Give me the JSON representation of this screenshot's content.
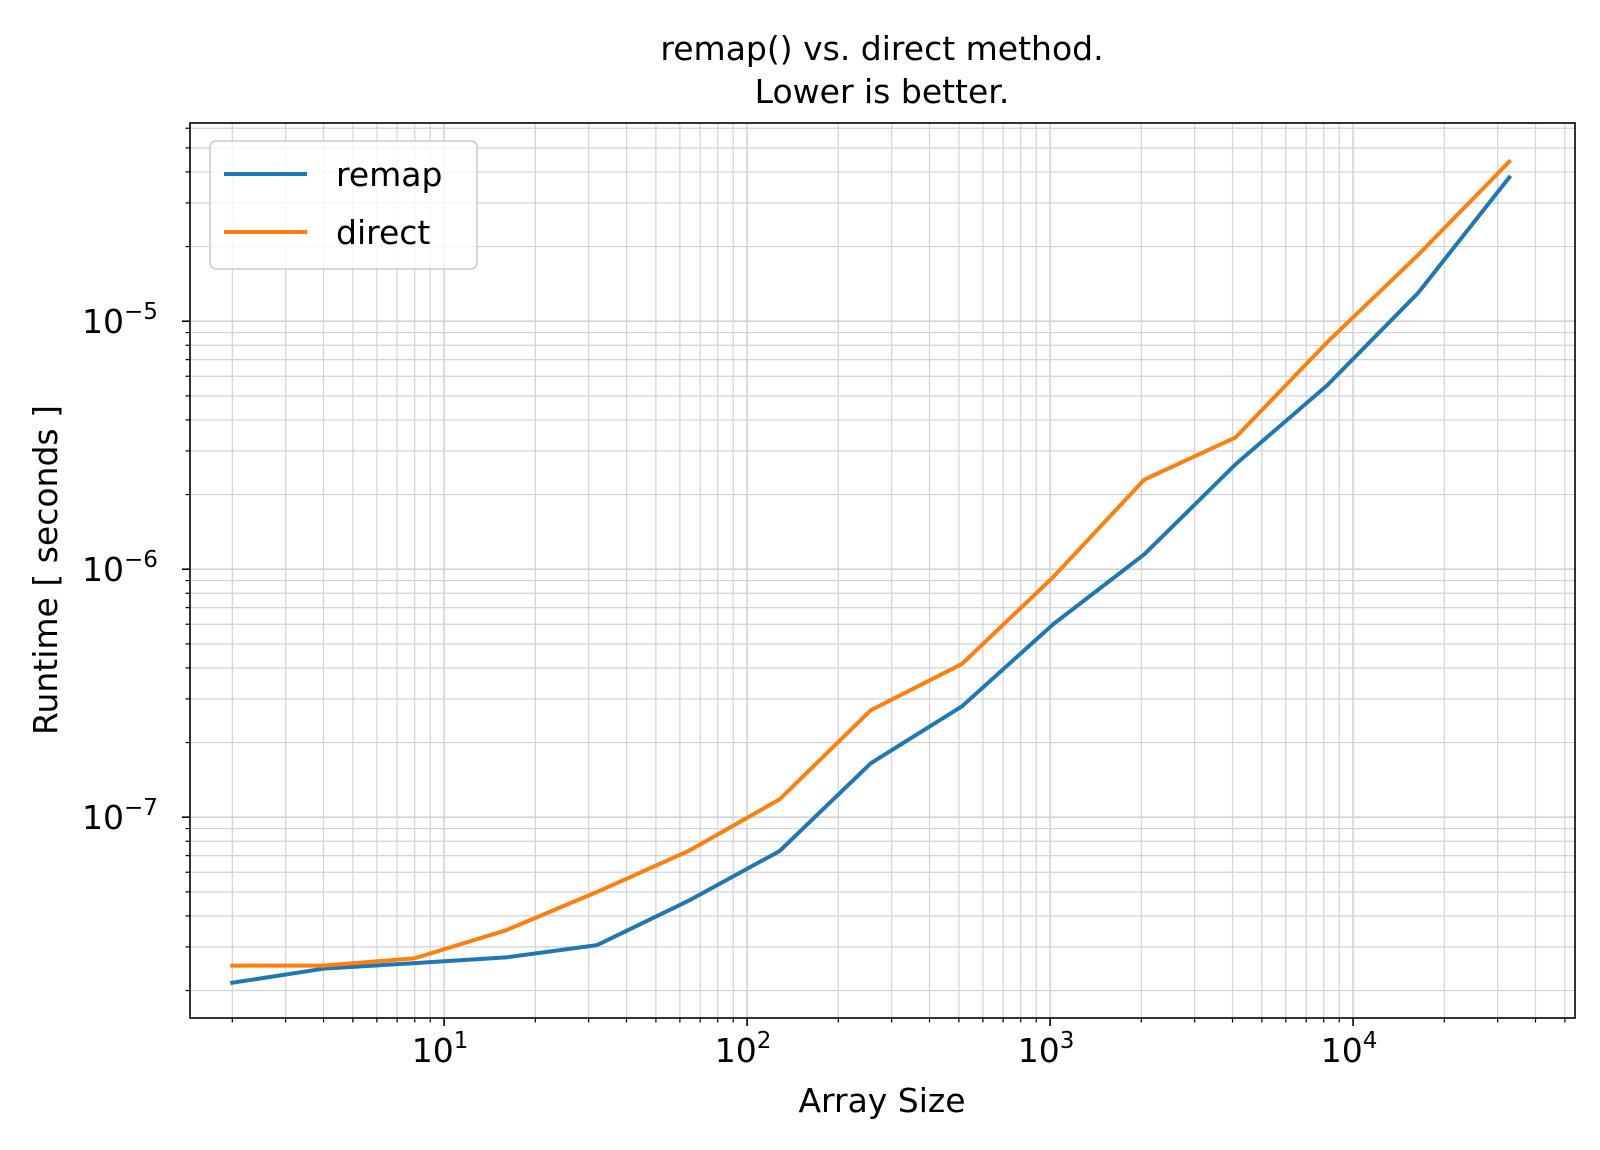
{
  "chart_data": {
    "type": "line",
    "title": [
      "remap() vs. direct method.",
      "Lower is better."
    ],
    "xlabel": "Array Size",
    "ylabel": "Runtime [ seconds ]",
    "xscale": "log",
    "yscale": "log",
    "xlim": [
      1.45,
      54000
    ],
    "ylim": [
      1.55e-08,
      6.3e-05
    ],
    "grid": "both",
    "legend_position": "top-left",
    "x_ticks": [
      {
        "value": 10,
        "base": "10",
        "exp": "1"
      },
      {
        "value": 100,
        "base": "10",
        "exp": "2"
      },
      {
        "value": 1000,
        "base": "10",
        "exp": "3"
      },
      {
        "value": 10000,
        "base": "10",
        "exp": "4"
      }
    ],
    "y_ticks": [
      {
        "value": 1e-07,
        "base": "10",
        "exp": "−7"
      },
      {
        "value": 1e-06,
        "base": "10",
        "exp": "−6"
      },
      {
        "value": 1e-05,
        "base": "10",
        "exp": "−5"
      }
    ],
    "x": [
      2,
      4,
      8,
      16,
      32,
      64,
      128,
      256,
      512,
      1024,
      2048,
      4096,
      8192,
      16384,
      32768
    ],
    "series": [
      {
        "name": "remap",
        "color": "#1f77b4",
        "values": [
          2.15e-08,
          2.45e-08,
          2.58e-08,
          2.72e-08,
          3.05e-08,
          4.6e-08,
          7.3e-08,
          1.65e-07,
          2.8e-07,
          6e-07,
          1.15e-06,
          2.65e-06,
          5.5e-06,
          1.3e-05,
          3.8e-05
        ]
      },
      {
        "name": "direct",
        "color": "#ff7f0e",
        "values": [
          2.52e-08,
          2.52e-08,
          2.7e-08,
          3.5e-08,
          5e-08,
          7.3e-08,
          1.18e-07,
          2.7e-07,
          4.15e-07,
          9.3e-07,
          2.3e-06,
          3.4e-06,
          8.2e-06,
          1.85e-05,
          4.4e-05
        ]
      }
    ],
    "grid_color": "#d3d3d3"
  }
}
